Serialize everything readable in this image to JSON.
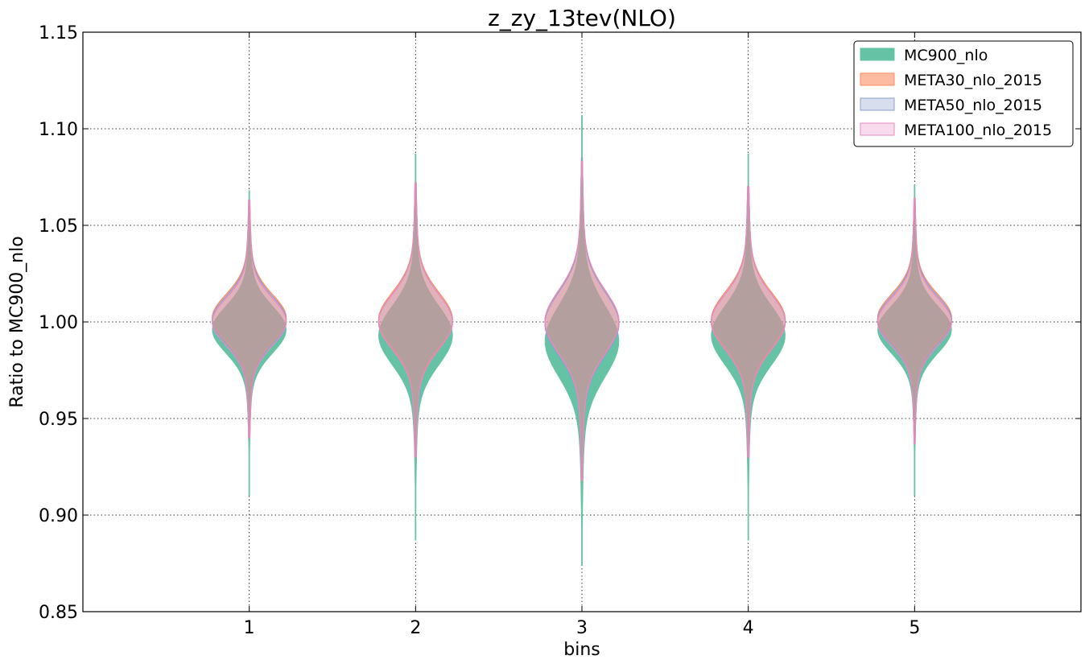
{
  "chart_data": {
    "type": "violin",
    "title": "z_zy_13tev(NLO)",
    "xlabel": "bins",
    "ylabel": "Ratio to MC900_nlo",
    "xlim": [
      0,
      6
    ],
    "ylim": [
      0.85,
      1.15
    ],
    "x_ticks": [
      1,
      2,
      3,
      4,
      5
    ],
    "y_ticks": [
      "0.85",
      "0.90",
      "0.95",
      "1.00",
      "1.05",
      "1.10",
      "1.15"
    ],
    "grid": true,
    "legend_position": "top-right",
    "categories": [
      1,
      2,
      3,
      4,
      5
    ],
    "series": [
      {
        "name": "MC900_nlo",
        "color": "#66c2a5",
        "fill_opacity": 1.0,
        "bins": [
          {
            "min": 0.91,
            "max": 1.068,
            "center": 0.996,
            "spread": 0.012
          },
          {
            "min": 0.887,
            "max": 1.087,
            "center": 0.993,
            "spread": 0.015
          },
          {
            "min": 0.874,
            "max": 1.107,
            "center": 0.99,
            "spread": 0.018
          },
          {
            "min": 0.887,
            "max": 1.087,
            "center": 0.993,
            "spread": 0.015
          },
          {
            "min": 0.91,
            "max": 1.071,
            "center": 0.996,
            "spread": 0.012
          }
        ]
      },
      {
        "name": "META30_nlo_2015",
        "color": "#fc8d62",
        "fill_opacity": 0.5,
        "bins": [
          {
            "min": 0.94,
            "max": 1.063,
            "center": 1.002,
            "spread": 0.012
          },
          {
            "min": 0.93,
            "max": 1.072,
            "center": 1.001,
            "spread": 0.014
          },
          {
            "min": 0.918,
            "max": 1.082,
            "center": 1.0,
            "spread": 0.016
          },
          {
            "min": 0.93,
            "max": 1.07,
            "center": 1.001,
            "spread": 0.014
          },
          {
            "min": 0.937,
            "max": 1.064,
            "center": 1.002,
            "spread": 0.012
          }
        ]
      },
      {
        "name": "META50_nlo_2015",
        "color": "#8da0cb",
        "fill_opacity": 0.25,
        "bins": [
          {
            "min": 0.94,
            "max": 1.063,
            "center": 1.001,
            "spread": 0.012
          },
          {
            "min": 0.93,
            "max": 1.072,
            "center": 1.0,
            "spread": 0.014
          },
          {
            "min": 0.918,
            "max": 1.085,
            "center": 0.999,
            "spread": 0.016
          },
          {
            "min": 0.93,
            "max": 1.07,
            "center": 1.0,
            "spread": 0.014
          },
          {
            "min": 0.937,
            "max": 1.064,
            "center": 1.001,
            "spread": 0.012
          }
        ]
      },
      {
        "name": "META100_nlo_2015",
        "color": "#e78ac3",
        "fill_opacity": 0.2,
        "bins": [
          {
            "min": 0.94,
            "max": 1.063,
            "center": 1.0,
            "spread": 0.012
          },
          {
            "min": 0.93,
            "max": 1.072,
            "center": 1.0,
            "spread": 0.014
          },
          {
            "min": 0.918,
            "max": 1.083,
            "center": 1.0,
            "spread": 0.016
          },
          {
            "min": 0.93,
            "max": 1.07,
            "center": 1.0,
            "spread": 0.014
          },
          {
            "min": 0.937,
            "max": 1.064,
            "center": 1.0,
            "spread": 0.012
          }
        ]
      }
    ]
  }
}
